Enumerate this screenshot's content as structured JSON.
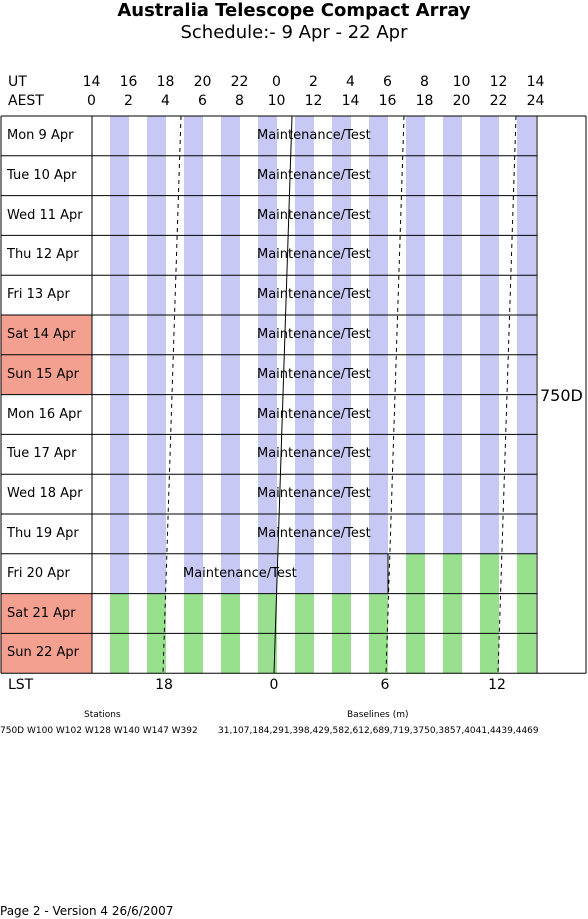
{
  "title": "Australia Telescope Compact Array",
  "subtitle": "Schedule:- 9  Apr - 22 Apr",
  "header": {
    "ut_label": "UT",
    "aest_label": "AEST",
    "ut_ticks": [
      "14",
      "16",
      "18",
      "20",
      "22",
      "0",
      "2",
      "4",
      "6",
      "8",
      "10",
      "12",
      "14"
    ],
    "aest_ticks": [
      "0",
      "2",
      "4",
      "6",
      "8",
      "10",
      "12",
      "14",
      "16",
      "18",
      "20",
      "22",
      "24"
    ]
  },
  "days": [
    {
      "label": "Mon   9  Apr",
      "weekend": false,
      "maint": "Maintenance/Test",
      "config": "maint"
    },
    {
      "label": "Tue   10 Apr",
      "weekend": false,
      "maint": "Maintenance/Test",
      "config": "maint"
    },
    {
      "label": "Wed   11 Apr",
      "weekend": false,
      "maint": "Maintenance/Test",
      "config": "maint"
    },
    {
      "label": "Thu   12 Apr",
      "weekend": false,
      "maint": "Maintenance/Test",
      "config": "maint"
    },
    {
      "label": "Fri    13 Apr",
      "weekend": false,
      "maint": "Maintenance/Test",
      "config": "maint"
    },
    {
      "label": "Sat   14 Apr",
      "weekend": true,
      "maint": "Maintenance/Test",
      "config": "maint"
    },
    {
      "label": "Sun   15 Apr",
      "weekend": true,
      "maint": "Maintenance/Test",
      "config": "maint"
    },
    {
      "label": "Mon   16 Apr",
      "weekend": false,
      "maint": "Maintenance/Test",
      "config": "maint"
    },
    {
      "label": "Tue   17 Apr",
      "weekend": false,
      "maint": "Maintenance/Test",
      "config": "maint"
    },
    {
      "label": "Wed   18 Apr",
      "weekend": false,
      "maint": "Maintenance/Test",
      "config": "maint"
    },
    {
      "label": "Thu   19 Apr",
      "weekend": false,
      "maint": "Maintenance/Test",
      "config": "maint"
    },
    {
      "label": "Fri    20 Apr",
      "weekend": false,
      "maint": "Maintenance/Test",
      "config": "split"
    },
    {
      "label": "Sat   21 Apr",
      "weekend": true,
      "maint": "",
      "config": "green"
    },
    {
      "label": "Sun   22 Apr",
      "weekend": true,
      "maint": "",
      "config": "green"
    }
  ],
  "array_config": "750D",
  "lst": {
    "label": "LST",
    "ticks": [
      "18",
      "0",
      "6",
      "12"
    ]
  },
  "footer": {
    "stations_title": "Stations",
    "baselines_title": "Baselines (m)",
    "stations": "750D   W100 W102 W128 W140 W147 W392",
    "baselines": "31,107,184,291,398,429,582,612,689,719,3750,3857,4041,4439,4469",
    "page_info": "Page 2 - Version 4  26/6/2007"
  },
  "colors": {
    "maint": "#c8c8f5",
    "green": "#98e08e",
    "weekend": "#f4a090"
  }
}
